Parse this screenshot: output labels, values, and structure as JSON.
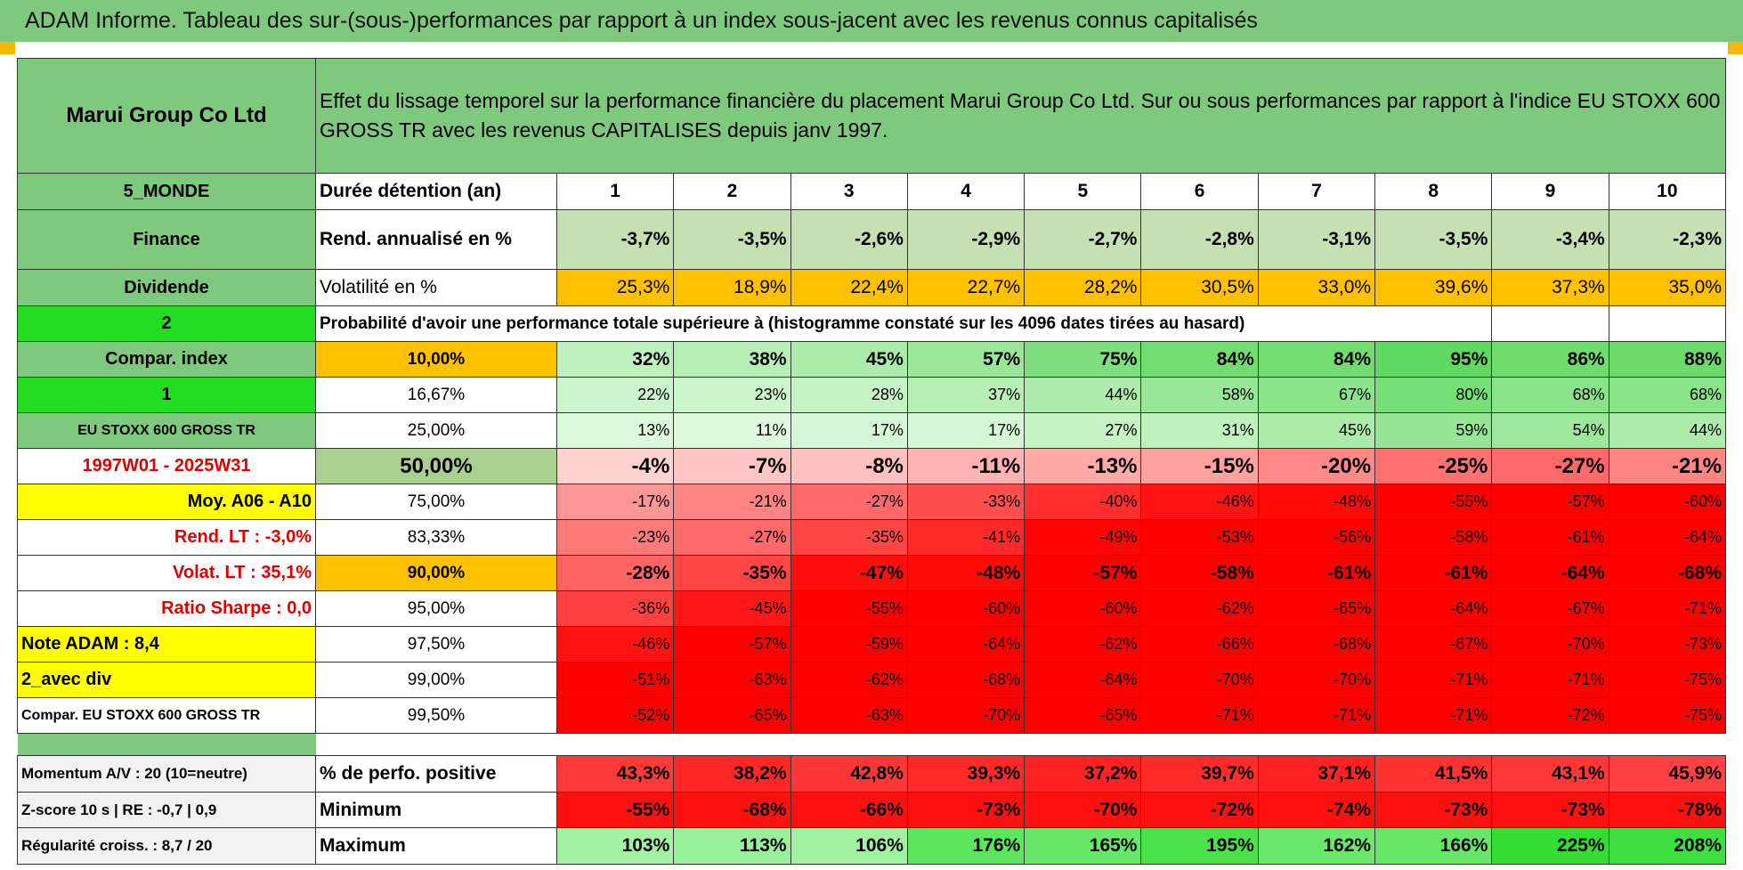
{
  "header": {
    "title": "ADAM Informe. Tableau des sur-(sous-)performances par rapport à un index sous-jacent avec les revenus connus capitalisés"
  },
  "table": {
    "rows": [
      [
        "Marui Group Co Ltd",
        "Effet du lissage temporel sur la performance financière du placement Marui Group Co Ltd. Sur ou sous performances par rapport à l'indice EU STOXX 600 GROSS TR avec les revenus CAPITALISES depuis janv 1997."
      ],
      [
        "5_MONDE",
        "Durée détention (an)",
        "1",
        "2",
        "3",
        "4",
        "5",
        "6",
        "7",
        "8",
        "9",
        "10"
      ],
      [
        "Finance",
        "Rend. annualisé en %",
        "-3,7%",
        "-3,5%",
        "-2,6%",
        "-2,9%",
        "-2,7%",
        "-2,8%",
        "-3,1%",
        "-3,5%",
        "-3,4%",
        "-2,3%"
      ],
      [
        "Dividende",
        "Volatilité en %",
        "25,3%",
        "18,9%",
        "22,4%",
        "22,7%",
        "28,2%",
        "30,5%",
        "33,0%",
        "39,6%",
        "37,3%",
        "35,0%"
      ],
      [
        "2",
        "Probabilité d'avoir une performance totale supérieure à (histogramme constaté sur les 4096 dates tirées au hasard)"
      ],
      [
        "Compar. index",
        "10,00%",
        "32%",
        "38%",
        "45%",
        "57%",
        "75%",
        "84%",
        "84%",
        "95%",
        "86%",
        "88%"
      ],
      [
        "1",
        "16,67%",
        "22%",
        "23%",
        "28%",
        "37%",
        "44%",
        "58%",
        "67%",
        "80%",
        "68%",
        "68%"
      ],
      [
        "EU STOXX 600 GROSS TR",
        "25,00%",
        "13%",
        "11%",
        "17%",
        "17%",
        "27%",
        "31%",
        "45%",
        "59%",
        "54%",
        "44%"
      ],
      [
        "1997W01 - 2025W31",
        "50,00%",
        "-4%",
        "-7%",
        "-8%",
        "-11%",
        "-13%",
        "-15%",
        "-20%",
        "-25%",
        "-27%",
        "-21%"
      ],
      [
        "Moy. A06 - A10",
        "75,00%",
        "-17%",
        "-21%",
        "-27%",
        "-33%",
        "-40%",
        "-46%",
        "-48%",
        "-55%",
        "-57%",
        "-60%"
      ],
      [
        "Rend. LT :    -3,0%",
        "83,33%",
        "-23%",
        "-27%",
        "-35%",
        "-41%",
        "-49%",
        "-53%",
        "-56%",
        "-58%",
        "-61%",
        "-64%"
      ],
      [
        "Volat. LT :    35,1%",
        "90,00%",
        "-28%",
        "-35%",
        "-47%",
        "-48%",
        "-57%",
        "-58%",
        "-61%",
        "-61%",
        "-64%",
        "-68%"
      ],
      [
        "Ratio Sharpe :    0,0",
        "95,00%",
        "-36%",
        "-45%",
        "-55%",
        "-60%",
        "-60%",
        "-62%",
        "-65%",
        "-64%",
        "-67%",
        "-71%"
      ],
      [
        "Note ADAM : 8,4",
        "97,50%",
        "-46%",
        "-57%",
        "-59%",
        "-64%",
        "-62%",
        "-66%",
        "-68%",
        "-67%",
        "-70%",
        "-73%"
      ],
      [
        "2_avec div",
        "99,00%",
        "-51%",
        "-63%",
        "-62%",
        "-68%",
        "-64%",
        "-70%",
        "-70%",
        "-71%",
        "-71%",
        "-75%"
      ],
      [
        "Compar. EU STOXX 600 GROSS TR",
        "99,50%",
        "-52%",
        "-65%",
        "-63%",
        "-70%",
        "-65%",
        "-71%",
        "-71%",
        "-71%",
        "-72%",
        "-75%"
      ],
      [
        "Momentum A/V : 20 (10=neutre)",
        "% de perfo. positive",
        "43,3%",
        "38,2%",
        "42,8%",
        "39,3%",
        "37,2%",
        "39,7%",
        "37,1%",
        "41,5%",
        "43,1%",
        "45,9%"
      ],
      [
        "Z-score 10 s | RE : -0,7 | 0,9",
        "Minimum",
        "-55%",
        "-68%",
        "-66%",
        "-73%",
        "-70%",
        "-72%",
        "-74%",
        "-73%",
        "-73%",
        "-78%"
      ],
      [
        "Régularité croiss. : 8,7 / 20",
        "Maximum",
        "103%",
        "113%",
        "106%",
        "176%",
        "165%",
        "195%",
        "162%",
        "166%",
        "225%",
        "208%"
      ]
    ]
  }
}
